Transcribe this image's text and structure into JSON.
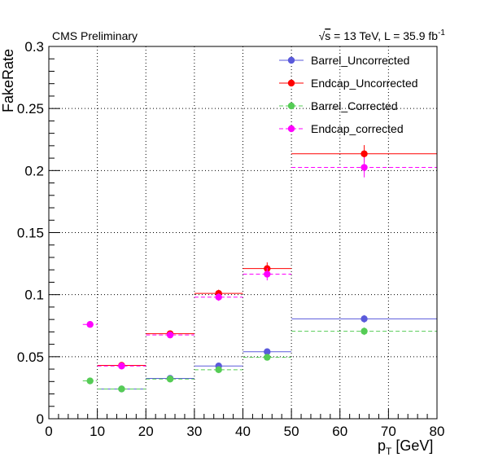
{
  "header": {
    "left": "CMS Preliminary",
    "right_sqrt": "√",
    "right_s": "s",
    "right_rest": " = 13 TeV, L = 35.9 fb",
    "right_sup": "-1"
  },
  "chart_data": {
    "type": "scatter",
    "title": "",
    "xlabel_main": "p",
    "xlabel_sub": "T",
    "xlabel_unit": " [GeV]",
    "ylabel": "FakeRate",
    "xlim": [
      0,
      80
    ],
    "ylim": [
      0,
      0.3
    ],
    "grid": true,
    "legend_position": "top-right",
    "x_ticks": [
      0,
      10,
      20,
      30,
      40,
      50,
      60,
      70,
      80
    ],
    "y_ticks": [
      0,
      0.05,
      0.1,
      0.15,
      0.2,
      0.25,
      0.3
    ],
    "x_tick_labels": [
      "0",
      "10",
      "20",
      "30",
      "40",
      "50",
      "60",
      "70",
      "80"
    ],
    "y_tick_labels": [
      "0",
      "0.05",
      "0.1",
      "0.15",
      "0.2",
      "0.25",
      "0.3"
    ],
    "series": [
      {
        "name": "Barrel_Uncorrected",
        "color": "#5a5adb",
        "dashed": false,
        "points": [
          {
            "x": 15,
            "xlo": 10,
            "xhi": 20,
            "y": 0.024,
            "err": 0.0008
          },
          {
            "x": 25,
            "xlo": 20,
            "xhi": 30,
            "y": 0.0325,
            "err": 0.001
          },
          {
            "x": 35,
            "xlo": 30,
            "xhi": 40,
            "y": 0.0425,
            "err": 0.0015
          },
          {
            "x": 45,
            "xlo": 40,
            "xhi": 50,
            "y": 0.054,
            "err": 0.002
          },
          {
            "x": 65,
            "xlo": 50,
            "xhi": 80,
            "y": 0.0805,
            "err": 0.003
          }
        ]
      },
      {
        "name": "Endcap_Uncorrected",
        "color": "#ff0000",
        "dashed": false,
        "points": [
          {
            "x": 15,
            "xlo": 10,
            "xhi": 20,
            "y": 0.043,
            "err": 0.001
          },
          {
            "x": 25,
            "xlo": 20,
            "xhi": 30,
            "y": 0.0685,
            "err": 0.0015
          },
          {
            "x": 35,
            "xlo": 30,
            "xhi": 40,
            "y": 0.101,
            "err": 0.003
          },
          {
            "x": 45,
            "xlo": 40,
            "xhi": 50,
            "y": 0.121,
            "err": 0.005
          },
          {
            "x": 65,
            "xlo": 50,
            "xhi": 80,
            "y": 0.2135,
            "err": 0.007
          }
        ]
      },
      {
        "name": "Barrel_Corrected",
        "color": "#55cc55",
        "dashed": true,
        "points": [
          {
            "x": 8.5,
            "xlo": 7,
            "xhi": 10,
            "y": 0.0305,
            "err": 0.0008
          },
          {
            "x": 15,
            "xlo": 10,
            "xhi": 20,
            "y": 0.024,
            "err": 0.0008
          },
          {
            "x": 25,
            "xlo": 20,
            "xhi": 30,
            "y": 0.032,
            "err": 0.001
          },
          {
            "x": 35,
            "xlo": 30,
            "xhi": 40,
            "y": 0.0395,
            "err": 0.0015
          },
          {
            "x": 45,
            "xlo": 40,
            "xhi": 50,
            "y": 0.0495,
            "err": 0.002
          },
          {
            "x": 65,
            "xlo": 50,
            "xhi": 80,
            "y": 0.0705,
            "err": 0.003
          }
        ]
      },
      {
        "name": "Endcap_corrected",
        "color": "#ff00ff",
        "dashed": true,
        "points": [
          {
            "x": 8.5,
            "xlo": 7,
            "xhi": 10,
            "y": 0.076,
            "err": 0.0015
          },
          {
            "x": 15,
            "xlo": 10,
            "xhi": 20,
            "y": 0.0425,
            "err": 0.001
          },
          {
            "x": 25,
            "xlo": 20,
            "xhi": 30,
            "y": 0.0675,
            "err": 0.0015
          },
          {
            "x": 35,
            "xlo": 30,
            "xhi": 40,
            "y": 0.098,
            "err": 0.003
          },
          {
            "x": 45,
            "xlo": 40,
            "xhi": 50,
            "y": 0.1165,
            "err": 0.005
          },
          {
            "x": 65,
            "xlo": 50,
            "xhi": 80,
            "y": 0.2025,
            "err": 0.008
          }
        ]
      }
    ]
  }
}
